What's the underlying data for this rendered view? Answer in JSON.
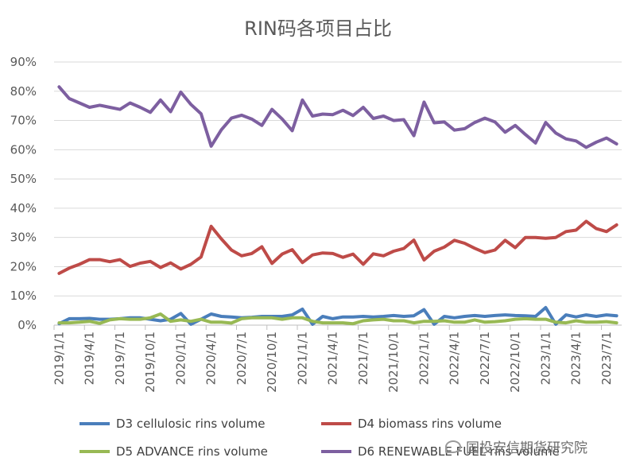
{
  "chart_data": {
    "type": "line",
    "title": "RIN码各项目占比",
    "xlabel": "",
    "ylabel": "",
    "ylim": [
      0,
      0.9
    ],
    "y_ticks": [
      "0%",
      "10%",
      "20%",
      "30%",
      "40%",
      "50%",
      "60%",
      "70%",
      "80%",
      "90%"
    ],
    "x_tick_labels": [
      "2019/1/1",
      "2019/4/1",
      "2019/7/1",
      "2019/10/1",
      "2020/1/1",
      "2020/4/1",
      "2020/7/1",
      "2020/10/1",
      "2021/1/1",
      "2021/4/1",
      "2021/7/1",
      "2021/10/1",
      "2022/1/1",
      "2022/4/1",
      "2022/7/1",
      "2022/10/1",
      "2023/1/1",
      "2023/4/1",
      "2023/7/1"
    ],
    "x": [
      "2019/1",
      "2019/2",
      "2019/3",
      "2019/4",
      "2019/5",
      "2019/6",
      "2019/7",
      "2019/8",
      "2019/9",
      "2019/10",
      "2019/11",
      "2019/12",
      "2020/1",
      "2020/2",
      "2020/3",
      "2020/4",
      "2020/5",
      "2020/6",
      "2020/7",
      "2020/8",
      "2020/9",
      "2020/10",
      "2020/11",
      "2020/12",
      "2021/1",
      "2021/2",
      "2021/3",
      "2021/4",
      "2021/5",
      "2021/6",
      "2021/7",
      "2021/8",
      "2021/9",
      "2021/10",
      "2021/11",
      "2021/12",
      "2022/1",
      "2022/2",
      "2022/3",
      "2022/4",
      "2022/5",
      "2022/6",
      "2022/7",
      "2022/8",
      "2022/9",
      "2022/10",
      "2022/11",
      "2022/12",
      "2023/1",
      "2023/2",
      "2023/3",
      "2023/4",
      "2023/5",
      "2023/6",
      "2023/7",
      "2023/8"
    ],
    "grid": true,
    "legend_position": "bottom",
    "series": [
      {
        "name": "D3 cellulosic rins volume",
        "color": "#4a7ebb",
        "values": [
          0.005,
          0.022,
          0.022,
          0.023,
          0.02,
          0.02,
          0.022,
          0.025,
          0.025,
          0.02,
          0.015,
          0.02,
          0.04,
          0.003,
          0.02,
          0.038,
          0.03,
          0.028,
          0.025,
          0.027,
          0.03,
          0.03,
          0.03,
          0.035,
          0.055,
          0.003,
          0.03,
          0.022,
          0.028,
          0.028,
          0.03,
          0.028,
          0.03,
          0.033,
          0.03,
          0.032,
          0.053,
          0.003,
          0.03,
          0.025,
          0.03,
          0.033,
          0.03,
          0.033,
          0.035,
          0.033,
          0.032,
          0.03,
          0.06,
          0.003,
          0.035,
          0.028,
          0.035,
          0.03,
          0.035,
          0.032
        ]
      },
      {
        "name": "D4 biomass rins volume",
        "color": "#be4b48",
        "values": [
          0.177,
          0.195,
          0.208,
          0.224,
          0.224,
          0.217,
          0.224,
          0.201,
          0.212,
          0.218,
          0.197,
          0.213,
          0.192,
          0.208,
          0.233,
          0.338,
          0.295,
          0.257,
          0.237,
          0.245,
          0.268,
          0.211,
          0.243,
          0.258,
          0.214,
          0.24,
          0.247,
          0.245,
          0.232,
          0.243,
          0.208,
          0.244,
          0.237,
          0.253,
          0.262,
          0.291,
          0.223,
          0.253,
          0.267,
          0.29,
          0.28,
          0.263,
          0.248,
          0.257,
          0.29,
          0.265,
          0.3,
          0.3,
          0.297,
          0.3,
          0.32,
          0.325,
          0.355,
          0.33,
          0.32,
          0.343
        ]
      },
      {
        "name": "D5 ADVANCE rins volume",
        "color": "#98b954",
        "values": [
          0.008,
          0.008,
          0.01,
          0.013,
          0.006,
          0.018,
          0.022,
          0.02,
          0.02,
          0.025,
          0.038,
          0.013,
          0.018,
          0.013,
          0.02,
          0.01,
          0.01,
          0.007,
          0.022,
          0.025,
          0.025,
          0.025,
          0.02,
          0.025,
          0.025,
          0.013,
          0.008,
          0.008,
          0.008,
          0.005,
          0.015,
          0.018,
          0.02,
          0.015,
          0.015,
          0.008,
          0.013,
          0.013,
          0.015,
          0.01,
          0.01,
          0.018,
          0.01,
          0.012,
          0.015,
          0.02,
          0.022,
          0.02,
          0.02,
          0.01,
          0.008,
          0.015,
          0.01,
          0.01,
          0.012,
          0.008
        ]
      },
      {
        "name": "D6 RENEWABLE FUEL rins volume",
        "color": "#7d5fa0",
        "values": [
          0.815,
          0.775,
          0.76,
          0.745,
          0.752,
          0.745,
          0.738,
          0.76,
          0.745,
          0.728,
          0.77,
          0.73,
          0.797,
          0.755,
          0.723,
          0.612,
          0.668,
          0.708,
          0.718,
          0.705,
          0.683,
          0.738,
          0.705,
          0.665,
          0.77,
          0.715,
          0.722,
          0.72,
          0.735,
          0.717,
          0.745,
          0.707,
          0.715,
          0.7,
          0.703,
          0.648,
          0.763,
          0.692,
          0.695,
          0.667,
          0.672,
          0.693,
          0.708,
          0.695,
          0.66,
          0.683,
          0.652,
          0.623,
          0.693,
          0.657,
          0.637,
          0.63,
          0.608,
          0.626,
          0.64,
          0.62
        ]
      }
    ]
  },
  "watermark": {
    "text": "国投安信期货研究院",
    "icon": "wechat-icon"
  }
}
